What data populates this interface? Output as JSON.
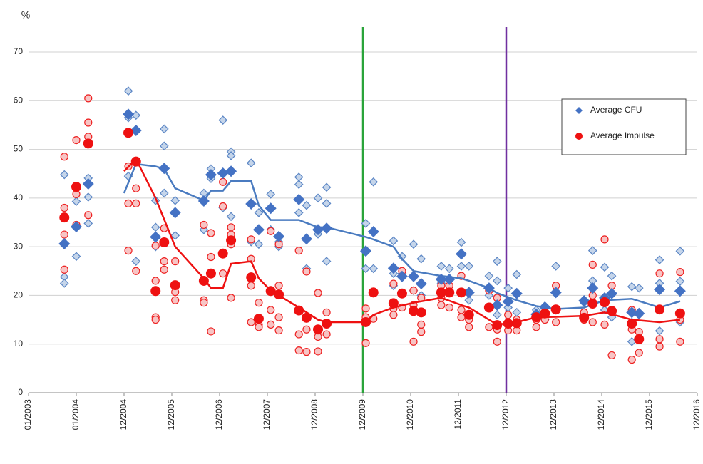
{
  "chart_data": {
    "type": "scatter",
    "y_label": "%",
    "xlim": [
      2003,
      2017
    ],
    "ylim": [
      0,
      70
    ],
    "yticks": [
      0,
      10,
      20,
      30,
      40,
      50,
      60,
      70
    ],
    "xticks": [
      {
        "value": 2003,
        "label": "01/2003"
      },
      {
        "value": 2004,
        "label": "01/2004"
      },
      {
        "value": 2005,
        "label": "12/2004"
      },
      {
        "value": 2006,
        "label": "12/2005"
      },
      {
        "value": 2007,
        "label": "12/2006"
      },
      {
        "value": 2008,
        "label": "12/2007"
      },
      {
        "value": 2009,
        "label": "12/2008"
      },
      {
        "value": 2010,
        "label": "12/2009"
      },
      {
        "value": 2011,
        "label": "12/2010"
      },
      {
        "value": 2012,
        "label": "12/2011"
      },
      {
        "value": 2013,
        "label": "12/2012"
      },
      {
        "value": 2014,
        "label": "12/2013"
      },
      {
        "value": 2015,
        "label": "12/2014"
      },
      {
        "value": 2016,
        "label": "12/2015"
      },
      {
        "value": 2017,
        "label": "12/2016"
      }
    ],
    "grid": true,
    "legend": "top-right",
    "vlines": [
      {
        "x": 2010,
        "color": "#2aa43a"
      },
      {
        "x": 2013,
        "color": "#7030a0"
      }
    ],
    "series": [
      {
        "name": "Average CFU",
        "color": "#4472c4",
        "marker": "diamond",
        "x": [
          2003.75,
          2004,
          2004.25,
          2005.09,
          2005.25,
          2005.66,
          2005.84,
          2006.07,
          2006.67,
          2006.82,
          2007.07,
          2007.24,
          2007.66,
          2007.82,
          2008.07,
          2008.24,
          2008.66,
          2008.82,
          2009.06,
          2009.24,
          2010.06,
          2010.22,
          2010.64,
          2010.82,
          2011.06,
          2011.22,
          2011.64,
          2011.81,
          2012.06,
          2012.22,
          2012.64,
          2012.81,
          2013.04,
          2013.22,
          2013.63,
          2013.81,
          2014.04,
          2014.63,
          2014.81,
          2015.06,
          2015.21,
          2015.63,
          2015.78,
          2016.21,
          2016.64
        ],
        "values": [
          30.6,
          34.1,
          42.9,
          57.2,
          53.9,
          32.0,
          46.1,
          37.0,
          39.4,
          44.8,
          45.1,
          45.5,
          38.8,
          33.5,
          37.9,
          32.1,
          39.7,
          31.6,
          33.5,
          33.8,
          29.1,
          33.1,
          25.6,
          23.9,
          23.9,
          22.4,
          23.3,
          23.3,
          28.5,
          20.6,
          21.5,
          18.0,
          18.7,
          20.4,
          16.1,
          17.6,
          20.6,
          18.9,
          21.5,
          19.5,
          20.4,
          16.5,
          16.3,
          21.2,
          20.9
        ],
        "trend": {
          "color": "#4a7bc0",
          "x": [
            2005.0,
            2005.25,
            2005.66,
            2005.84,
            2006.07,
            2006.67,
            2006.82,
            2007.07,
            2007.24,
            2007.66,
            2007.82,
            2008.07,
            2008.66,
            2009.06,
            2009.24,
            2010.06,
            2010.22,
            2010.64,
            2010.82,
            2011.06,
            2011.64,
            2012.06,
            2012.22,
            2012.64,
            2012.81,
            2013.22,
            2013.63,
            2014.04,
            2014.63,
            2015.06,
            2015.63,
            2016.21,
            2016.64
          ],
          "values": [
            41,
            47,
            46.5,
            46,
            42,
            39.5,
            41.5,
            41.5,
            43.5,
            43.5,
            38.5,
            35.5,
            35.5,
            34,
            34,
            32,
            31.5,
            30,
            27.5,
            25,
            24,
            23.5,
            23,
            21.5,
            20.5,
            19,
            17.8,
            17.2,
            17.5,
            19,
            19.3,
            17.5,
            18.8
          ]
        },
        "samples": {
          "fill": "#c5d5ea",
          "stroke": "#5b86c5",
          "x": [
            2003.75,
            2003.75,
            2003.75,
            2004,
            2004,
            2004.25,
            2004.25,
            2004.25,
            2005.09,
            2005.09,
            2005.09,
            2005.25,
            2005.25,
            2005.66,
            2005.66,
            2005.66,
            2005.84,
            2005.84,
            2005.84,
            2006.07,
            2006.07,
            2006.67,
            2006.67,
            2006.82,
            2006.82,
            2007.07,
            2007.07,
            2007.24,
            2007.24,
            2007.24,
            2007.66,
            2007.66,
            2007.82,
            2007.82,
            2008.07,
            2008.07,
            2008.24,
            2008.24,
            2008.66,
            2008.66,
            2008.66,
            2008.82,
            2008.82,
            2009.06,
            2009.06,
            2009.24,
            2009.24,
            2009.24,
            2010.06,
            2010.06,
            2010.22,
            2010.22,
            2010.64,
            2010.64,
            2010.64,
            2010.82,
            2010.82,
            2011.06,
            2011.06,
            2011.22,
            2011.22,
            2011.64,
            2011.64,
            2011.81,
            2011.81,
            2012.06,
            2012.06,
            2012.22,
            2012.22,
            2012.64,
            2012.64,
            2012.81,
            2012.81,
            2012.81,
            2013.04,
            2013.04,
            2013.22,
            2013.22,
            2013.63,
            2013.63,
            2013.81,
            2013.81,
            2014.04,
            2014.04,
            2014.63,
            2014.63,
            2014.81,
            2014.81,
            2015.06,
            2015.06,
            2015.21,
            2015.21,
            2015.63,
            2015.63,
            2015.63,
            2015.78,
            2015.78,
            2016.21,
            2016.21,
            2016.21,
            2016.64,
            2016.64,
            2016.64
          ],
          "values": [
            44.8,
            23.8,
            22.5,
            39.3,
            28.0,
            44.1,
            40.2,
            34.8,
            62.0,
            56.5,
            44.5,
            57.0,
            27.0,
            39.5,
            34.0,
            30.0,
            54.2,
            50.7,
            41.0,
            39.5,
            32.3,
            41.0,
            33.5,
            46.0,
            44.0,
            56.0,
            38.0,
            49.5,
            48.7,
            36.2,
            47.2,
            31.0,
            37.0,
            30.5,
            40.8,
            33.5,
            31.0,
            30.0,
            44.3,
            42.8,
            37.0,
            38.5,
            25.5,
            40.0,
            32.6,
            42.2,
            38.9,
            27.0,
            34.8,
            25.5,
            43.3,
            25.5,
            31.2,
            24.5,
            22.0,
            28.0,
            24.5,
            30.5,
            21.0,
            27.5,
            20.0,
            26.0,
            22.5,
            25.5,
            21.0,
            30.9,
            26.0,
            26.0,
            19.0,
            24.0,
            20.0,
            27.0,
            23.0,
            16.0,
            21.5,
            17.5,
            24.3,
            16.5,
            17.0,
            15.5,
            16.5,
            15.0,
            26.0,
            17.0,
            18.5,
            16.0,
            29.2,
            23.0,
            25.8,
            17.0,
            24.0,
            15.5,
            21.8,
            10.5,
            14.5,
            21.5,
            16.0,
            27.3,
            22.5,
            12.7,
            29.1,
            22.9,
            14.5
          ]
        }
      },
      {
        "name": "Average Impulse",
        "color": "#ee1111",
        "marker": "circle",
        "x": [
          2003.75,
          2004,
          2004.25,
          2005.09,
          2005.25,
          2005.66,
          2005.84,
          2006.07,
          2006.67,
          2006.82,
          2007.07,
          2007.24,
          2007.66,
          2007.82,
          2008.07,
          2008.24,
          2008.66,
          2008.82,
          2009.06,
          2009.24,
          2010.06,
          2010.22,
          2010.64,
          2010.82,
          2011.06,
          2011.22,
          2011.64,
          2011.81,
          2012.06,
          2012.22,
          2012.64,
          2012.81,
          2013.04,
          2013.22,
          2013.63,
          2013.81,
          2014.04,
          2014.63,
          2014.81,
          2015.06,
          2015.21,
          2015.63,
          2015.78,
          2016.21,
          2016.64
        ],
        "values": [
          36.0,
          42.3,
          51.2,
          53.4,
          47.5,
          20.9,
          30.9,
          22.1,
          23.0,
          24.5,
          28.6,
          31.3,
          23.7,
          15.2,
          20.9,
          20.2,
          16.9,
          15.4,
          13.0,
          14.2,
          14.5,
          20.6,
          18.4,
          20.4,
          16.8,
          16.5,
          20.6,
          20.6,
          20.6,
          16.0,
          17.5,
          13.9,
          14.2,
          14.3,
          15.5,
          16.3,
          17.1,
          15.4,
          18.3,
          18.6,
          16.8,
          14.2,
          11.0,
          17.1,
          16.3
        ],
        "trend": {
          "color": "#ee1111",
          "x": [
            2005.0,
            2005.25,
            2005.66,
            2006.07,
            2006.67,
            2006.82,
            2007.07,
            2007.24,
            2007.66,
            2007.82,
            2008.07,
            2008.24,
            2008.66,
            2009.06,
            2009.24,
            2010.06,
            2010.22,
            2010.64,
            2011.06,
            2011.64,
            2012.06,
            2012.22,
            2012.64,
            2012.81,
            2013.22,
            2013.63,
            2014.04,
            2014.63,
            2015.06,
            2015.63,
            2016.21,
            2016.64
          ],
          "values": [
            45.5,
            48,
            40,
            30,
            23.5,
            21.5,
            21.5,
            26.5,
            27,
            23.5,
            21,
            20,
            17.5,
            15,
            14.5,
            14.5,
            16,
            17.5,
            18.5,
            19.5,
            18,
            17.5,
            15,
            14,
            14.5,
            15.5,
            15.6,
            15.8,
            16.5,
            15,
            14.5,
            15
          ]
        },
        "samples": {
          "fill": "#f7c4c4",
          "stroke": "#ee2222",
          "x": [
            2003.75,
            2003.75,
            2003.75,
            2003.75,
            2004,
            2004,
            2004,
            2004.25,
            2004.25,
            2004.25,
            2004.25,
            2005.09,
            2005.09,
            2005.09,
            2005.25,
            2005.25,
            2005.25,
            2005.66,
            2005.66,
            2005.66,
            2005.66,
            2005.84,
            2005.84,
            2005.84,
            2006.07,
            2006.07,
            2006.07,
            2006.67,
            2006.67,
            2006.67,
            2006.82,
            2006.82,
            2006.82,
            2007.07,
            2007.07,
            2007.07,
            2007.24,
            2007.24,
            2007.24,
            2007.24,
            2007.66,
            2007.66,
            2007.66,
            2007.66,
            2007.82,
            2007.82,
            2007.82,
            2008.07,
            2008.07,
            2008.07,
            2008.07,
            2008.24,
            2008.24,
            2008.24,
            2008.24,
            2008.66,
            2008.66,
            2008.66,
            2008.82,
            2008.82,
            2008.82,
            2009.06,
            2009.06,
            2009.06,
            2009.24,
            2009.24,
            2010.06,
            2010.06,
            2010.06,
            2010.22,
            2010.22,
            2010.64,
            2010.64,
            2010.64,
            2010.82,
            2010.82,
            2011.06,
            2011.06,
            2011.06,
            2011.22,
            2011.22,
            2011.22,
            2011.64,
            2011.64,
            2011.64,
            2011.81,
            2011.81,
            2012.06,
            2012.06,
            2012.06,
            2012.22,
            2012.22,
            2012.64,
            2012.64,
            2012.64,
            2012.81,
            2012.81,
            2012.81,
            2013.04,
            2013.04,
            2013.22,
            2013.22,
            2013.63,
            2013.63,
            2013.81,
            2013.81,
            2014.04,
            2014.04,
            2014.63,
            2014.63,
            2014.81,
            2014.81,
            2014.81,
            2015.06,
            2015.06,
            2015.21,
            2015.21,
            2015.63,
            2015.63,
            2015.63,
            2015.78,
            2015.78,
            2016.21,
            2016.21,
            2016.21,
            2016.64,
            2016.64,
            2016.64
          ],
          "values": [
            48.5,
            38.0,
            32.5,
            25.3,
            51.9,
            40.8,
            34.5,
            60.5,
            55.5,
            52.6,
            36.5,
            46.5,
            38.9,
            29.2,
            42.0,
            38.9,
            25.0,
            30.2,
            23.0,
            15.5,
            15.0,
            33.8,
            27.0,
            25.3,
            27.0,
            20.7,
            19.0,
            34.5,
            19.0,
            18.5,
            32.8,
            27.9,
            12.6,
            43.3,
            38.3,
            24.5,
            34.0,
            32.5,
            30.5,
            19.5,
            31.5,
            27.5,
            22.0,
            14.5,
            18.5,
            14.0,
            13.5,
            33.2,
            21.0,
            17.0,
            14.0,
            30.5,
            22.0,
            15.5,
            12.8,
            29.2,
            12.0,
            8.7,
            24.9,
            13.0,
            8.4,
            20.5,
            11.5,
            8.5,
            16.5,
            12.0,
            17.3,
            15.5,
            10.2,
            20.8,
            15.2,
            22.4,
            17.3,
            16.0,
            25.0,
            17.5,
            21.0,
            18.0,
            10.5,
            19.5,
            14.0,
            12.5,
            22.0,
            19.5,
            18.0,
            22.0,
            17.5,
            24.0,
            17.0,
            15.5,
            15.0,
            13.5,
            21.0,
            17.5,
            13.5,
            19.5,
            13.0,
            10.5,
            16.0,
            12.8,
            15.0,
            12.8,
            15.0,
            13.5,
            16.0,
            15.0,
            22.0,
            14.5,
            16.5,
            15.0,
            26.3,
            20.0,
            14.5,
            31.5,
            14.0,
            22.0,
            7.7,
            17.0,
            13.0,
            6.8,
            12.5,
            8.2,
            24.5,
            11.0,
            9.5,
            24.8,
            15.0,
            10.5
          ]
        }
      }
    ]
  }
}
